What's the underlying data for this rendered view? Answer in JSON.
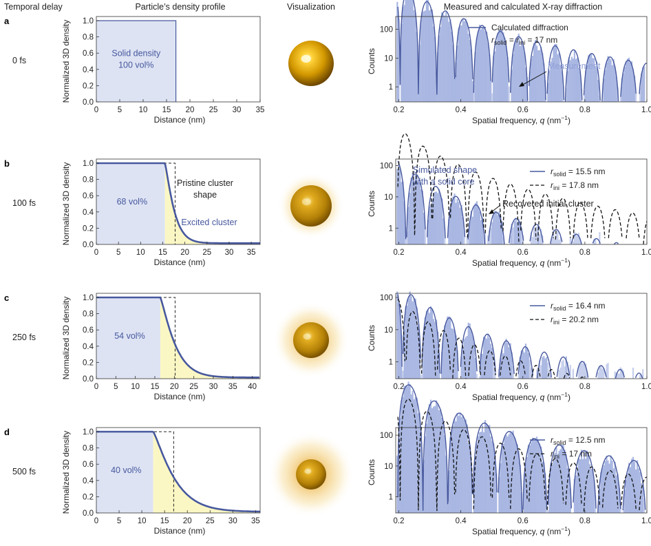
{
  "headers": {
    "delay": "Temporal delay",
    "profile": "Particle’s density profile",
    "vis": "Visualization",
    "diff": "Measured and calculated X-ray diffraction"
  },
  "colors": {
    "solid": "#dde3f3",
    "liquid": "#fbf7c4",
    "line": "#47589e",
    "bars": "#a9b7e2",
    "barsLight": "#c6cfec",
    "gold": "#d6a000"
  },
  "chart_data": [
    {
      "type": "area",
      "panel": "a",
      "delay": "0 fs",
      "r_solid": 17,
      "r_ini": 17,
      "core": 17,
      "decay": 0,
      "xlim": [
        0,
        35
      ],
      "xticks": [
        "0",
        "5",
        "10",
        "15",
        "20",
        "25",
        "30",
        "35"
      ],
      "yticks": [
        "0.0",
        "0.2",
        "0.4",
        "0.6",
        "0.8",
        "1.0"
      ],
      "xlabel": "Distance (nm)",
      "ylabel": "Normalized 3D density",
      "ylim": [
        0,
        1
      ],
      "region_label": [
        "Solid density",
        "100 vol%"
      ],
      "notes": []
    },
    {
      "type": "area",
      "panel": "b",
      "delay": "100 fs",
      "r_solid": 15.5,
      "r_ini": 17.8,
      "core": 15.5,
      "decay": 2.3,
      "xlim": [
        0,
        37
      ],
      "xticks": [
        "0",
        "5",
        "10",
        "15",
        "20",
        "25",
        "30",
        "35"
      ],
      "yticks": [
        "0.0",
        "0.2",
        "0.4",
        "0.6",
        "0.8",
        "1.0"
      ],
      "xlabel": "Distance (nm)",
      "ylabel": "Normalized 3D density",
      "ylim": [
        0,
        1
      ],
      "region_label": [
        "68 vol%"
      ],
      "notes": [
        "Pristine cluster",
        "shape",
        "Excited cluster"
      ]
    },
    {
      "type": "area",
      "panel": "c",
      "delay": "250 fs",
      "r_solid": 16.4,
      "r_ini": 20.2,
      "core": 16.4,
      "decay": 4.2,
      "xlim": [
        0,
        42
      ],
      "xticks": [
        "0",
        "5",
        "10",
        "15",
        "20",
        "25",
        "30",
        "35",
        "40"
      ],
      "yticks": [
        "0.0",
        "0.2",
        "0.4",
        "0.6",
        "0.8",
        "1.0"
      ],
      "xlabel": "Distance (nm)",
      "ylabel": "Normalized 3D density",
      "ylim": [
        0,
        1
      ],
      "region_label": [
        "54 vol%"
      ],
      "notes": []
    },
    {
      "type": "area",
      "panel": "d",
      "delay": "500 fs",
      "r_solid": 12.5,
      "r_ini": 17,
      "core": 12.5,
      "decay": 5.2,
      "xlim": [
        0,
        36
      ],
      "xticks": [
        "0",
        "5",
        "10",
        "15",
        "20",
        "25",
        "30",
        "35"
      ],
      "yticks": [
        "0.0",
        "0.2",
        "0.4",
        "0.6",
        "0.8",
        "1.0"
      ],
      "xlabel": "Distance (nm)",
      "ylabel": "Normalized 3D density",
      "ylim": [
        0,
        1
      ],
      "region_label": [
        "40 vol%"
      ],
      "notes": []
    },
    {
      "type": "line",
      "panel": "a",
      "scale": "log",
      "xlim": [
        0.19,
        1.0
      ],
      "ylim": [
        0.3,
        200
      ],
      "xticks": [
        "0.2",
        "0.4",
        "0.6",
        "0.8",
        "1.0"
      ],
      "yticks": [
        "100",
        "10",
        "1"
      ],
      "xlabel": "Spatial frequency, q (nm−1)",
      "ylabel": "Counts",
      "series": [
        {
          "name": "Calculated diffraction",
          "r": 17,
          "style": "solid",
          "A0": 200
        },
        {
          "name": "Measurement",
          "style": "bars",
          "r": 17,
          "A0": 180
        }
      ],
      "legend_extra": "r_solid = r_ini = 17 nm"
    },
    {
      "type": "line",
      "panel": "b",
      "scale": "log",
      "xlim": [
        0.19,
        1.0
      ],
      "ylim": [
        0.3,
        120
      ],
      "xticks": [
        "0.2",
        "0.4",
        "0.6",
        "0.8",
        "1.0"
      ],
      "yticks": [
        "100",
        "10",
        "1"
      ],
      "xlabel": "Spatial frequency, q (nm−1)",
      "ylabel": "Counts",
      "series": [
        {
          "name": "r_solid = 15.5 nm",
          "r": 15.5,
          "style": "solid",
          "A0": 120
        },
        {
          "name": "r_ini = 17.8 nm",
          "r": 17.8,
          "style": "dashed",
          "A0": 120
        },
        {
          "name": "bars",
          "style": "bars",
          "r": 15.5,
          "A0": 110
        }
      ],
      "notes": [
        "Simulated shape",
        "with a solid core",
        "Recovered initial cluster"
      ]
    },
    {
      "type": "line",
      "panel": "c",
      "scale": "log",
      "xlim": [
        0.19,
        1.0
      ],
      "ylim": [
        0.3,
        100
      ],
      "xticks": [
        "0.2",
        "0.4",
        "0.6",
        "0.8",
        "1.0"
      ],
      "yticks": [
        "100",
        "10",
        "1"
      ],
      "xlabel": "Spatial frequency, q (nm−1)",
      "ylabel": "Counts",
      "series": [
        {
          "name": "r_solid = 16.4 nm",
          "r": 16.4,
          "style": "solid",
          "A0": 80
        },
        {
          "name": "r_ini = 20.2 nm",
          "r": 20.2,
          "style": "dashed",
          "A0": 80
        },
        {
          "name": "bars",
          "style": "bars",
          "r": 16.4,
          "A0": 75
        }
      ]
    },
    {
      "type": "line",
      "panel": "d",
      "scale": "log",
      "xlim": [
        0.19,
        1.0
      ],
      "ylim": [
        0.3,
        130
      ],
      "xticks": [
        "0.2",
        "0.4",
        "0.6",
        "0.8",
        "1.0"
      ],
      "yticks": [
        "100",
        "10",
        "1"
      ],
      "xlabel": "Spatial frequency, q (nm−1)",
      "ylabel": "Counts",
      "series": [
        {
          "name": "r_solid = 12.5 nm",
          "r": 12.5,
          "style": "solid",
          "A0": 130
        },
        {
          "name": "r_ini = 17 nm",
          "r": 17,
          "style": "dashed",
          "A0": 130
        },
        {
          "name": "bars",
          "style": "bars",
          "r": 12.5,
          "A0": 120
        }
      ]
    }
  ]
}
